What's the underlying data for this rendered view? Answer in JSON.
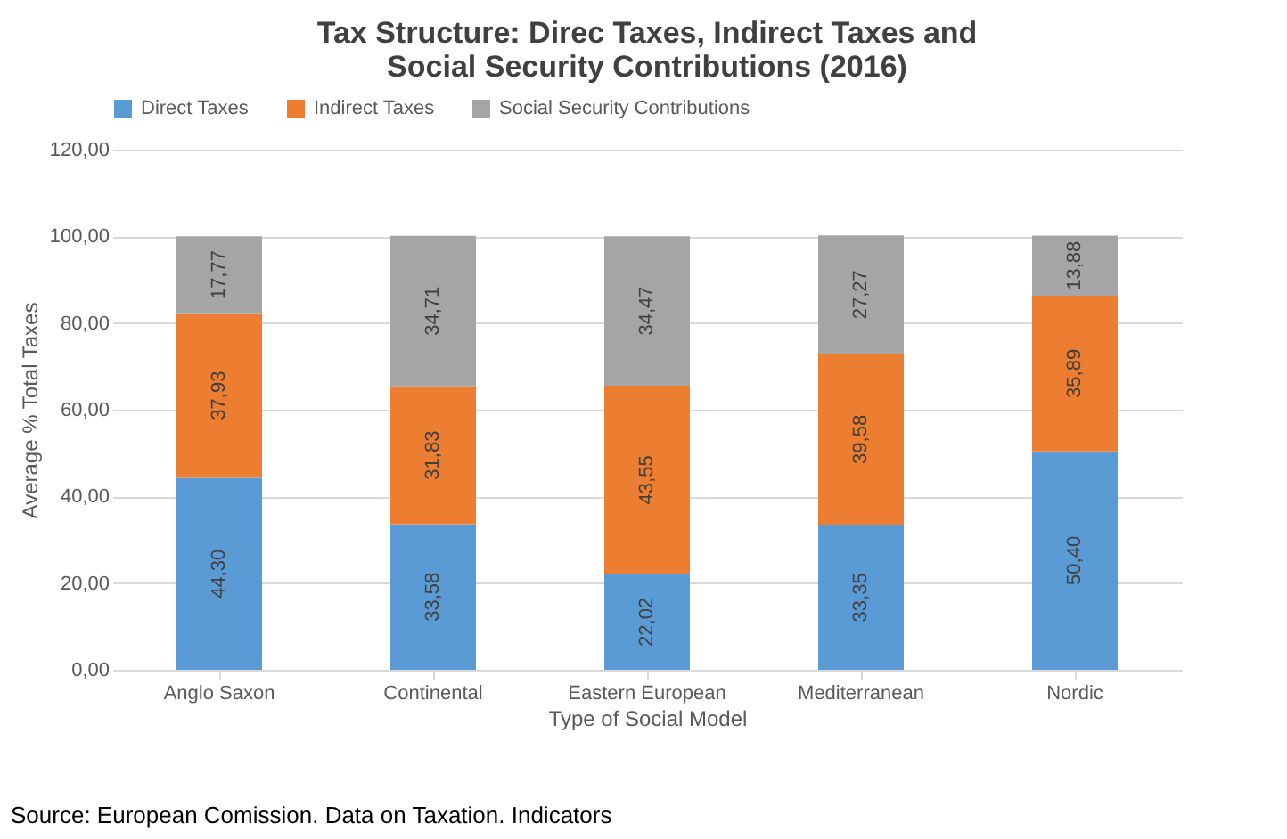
{
  "chart_data": {
    "type": "bar",
    "stacked": true,
    "title": "Tax Structure: Direc Taxes, Indirect Taxes and Social Security Contributions (2016)",
    "xlabel": "Type of Social Model",
    "ylabel": "Average % Total Taxes",
    "categories": [
      "Anglo Saxon",
      "Continental",
      "Eastern European",
      "Mediterranean",
      "Nordic"
    ],
    "series": [
      {
        "name": "Direct Taxes",
        "color": "#5b9bd5",
        "values": [
          44.3,
          33.58,
          22.02,
          33.35,
          50.4
        ],
        "value_labels": [
          "44,30",
          "33,58",
          "22,02",
          "33,35",
          "50,40"
        ]
      },
      {
        "name": "Indirect Taxes",
        "color": "#ed7d31",
        "values": [
          37.93,
          31.83,
          43.55,
          39.58,
          35.89
        ],
        "value_labels": [
          "37,93",
          "31,83",
          "43,55",
          "39,58",
          "35,89"
        ]
      },
      {
        "name": "Social Security Contributions",
        "color": "#a5a5a5",
        "values": [
          17.77,
          34.71,
          34.47,
          27.27,
          13.88
        ],
        "value_labels": [
          "17,77",
          "34,71",
          "34,47",
          "27,27",
          "13,88"
        ]
      }
    ],
    "ylim": [
      0,
      120
    ],
    "yticks": [
      {
        "value": 0,
        "label": "0,00"
      },
      {
        "value": 20,
        "label": "20,00"
      },
      {
        "value": 40,
        "label": "40,00"
      },
      {
        "value": 60,
        "label": "60,00"
      },
      {
        "value": 80,
        "label": "80,00"
      },
      {
        "value": 100,
        "label": "100,00"
      },
      {
        "value": 120,
        "label": "120,00"
      }
    ],
    "grid": "y",
    "legend": "top",
    "annotations": [
      "Source: European Comission. Data on Taxation. Indicators"
    ]
  }
}
